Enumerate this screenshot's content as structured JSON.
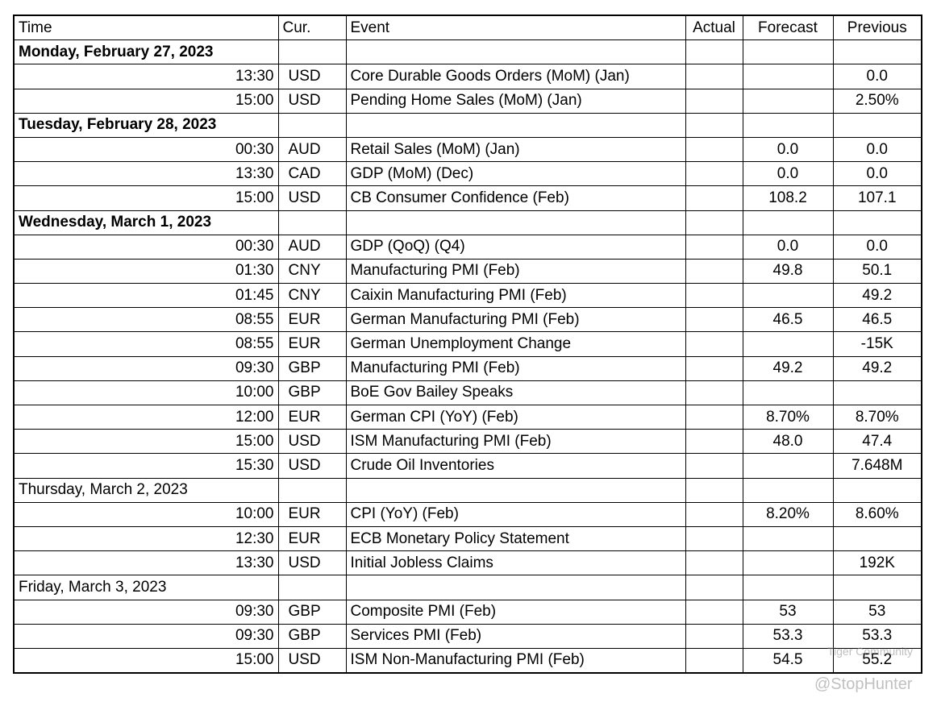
{
  "table": {
    "columns": [
      "Time",
      "Cur.",
      "Event",
      "Actual",
      "Forecast",
      "Previous"
    ],
    "days": [
      {
        "date": "Monday, February 27, 2023",
        "bold": true,
        "events": [
          [
            "13:30",
            "USD",
            "Core Durable Goods Orders (MoM) (Jan)",
            null,
            null,
            "0.0"
          ],
          [
            "15:00",
            "USD",
            "Pending Home Sales (MoM) (Jan)",
            null,
            null,
            "2.50%"
          ]
        ]
      },
      {
        "date": "Tuesday, February 28, 2023",
        "bold": true,
        "events": [
          [
            "00:30",
            "AUD",
            "Retail Sales (MoM) (Jan)",
            null,
            "0.0",
            "0.0"
          ],
          [
            "13:30",
            "CAD",
            "GDP (MoM) (Dec)",
            null,
            "0.0",
            "0.0"
          ],
          [
            "15:00",
            "USD",
            "CB Consumer Confidence (Feb)",
            null,
            "108.2",
            "107.1"
          ]
        ]
      },
      {
        "date": "Wednesday, March 1, 2023",
        "bold": true,
        "events": [
          [
            "00:30",
            "AUD",
            "GDP (QoQ) (Q4)",
            null,
            "0.0",
            "0.0"
          ],
          [
            "01:30",
            "CNY",
            "Manufacturing PMI (Feb)",
            null,
            "49.8",
            "50.1"
          ],
          [
            "01:45",
            "CNY",
            "Caixin Manufacturing PMI (Feb)",
            null,
            null,
            "49.2"
          ],
          [
            "08:55",
            "EUR",
            "German Manufacturing PMI (Feb)",
            null,
            "46.5",
            "46.5"
          ],
          [
            "08:55",
            "EUR",
            "German Unemployment Change",
            null,
            null,
            "-15K"
          ],
          [
            "09:30",
            "GBP",
            "Manufacturing PMI (Feb)",
            null,
            "49.2",
            "49.2"
          ],
          [
            "10:00",
            "GBP",
            "BoE Gov Bailey Speaks",
            null,
            null,
            null
          ],
          [
            "12:00",
            "EUR",
            "German CPI (YoY) (Feb)",
            null,
            "8.70%",
            "8.70%"
          ],
          [
            "15:00",
            "USD",
            "ISM Manufacturing PMI (Feb)",
            null,
            "48.0",
            "47.4"
          ],
          [
            "15:30",
            "USD",
            "Crude Oil Inventories",
            null,
            null,
            "7.648M"
          ]
        ]
      },
      {
        "date": "Thursday, March 2, 2023",
        "bold": false,
        "events": [
          [
            "10:00",
            "EUR",
            "CPI (YoY) (Feb)",
            null,
            "8.20%",
            "8.60%"
          ],
          [
            "12:30",
            "EUR",
            "ECB Monetary Policy Statement",
            null,
            null,
            null
          ],
          [
            "13:30",
            "USD",
            "Initial Jobless Claims",
            null,
            null,
            "192K"
          ]
        ]
      },
      {
        "date": "Friday, March 3, 2023",
        "bold": false,
        "events": [
          [
            "09:30",
            "GBP",
            "Composite PMI (Feb)",
            null,
            "53",
            "53"
          ],
          [
            "09:30",
            "GBP",
            "Services PMI (Feb)",
            null,
            "53.3",
            "53.3"
          ],
          [
            "15:00",
            "USD",
            "ISM Non-Manufacturing PMI (Feb)",
            null,
            "54.5",
            "55.2"
          ]
        ]
      }
    ]
  },
  "watermark": {
    "brand": "Tiger Community",
    "handle": "@StopHunter"
  }
}
